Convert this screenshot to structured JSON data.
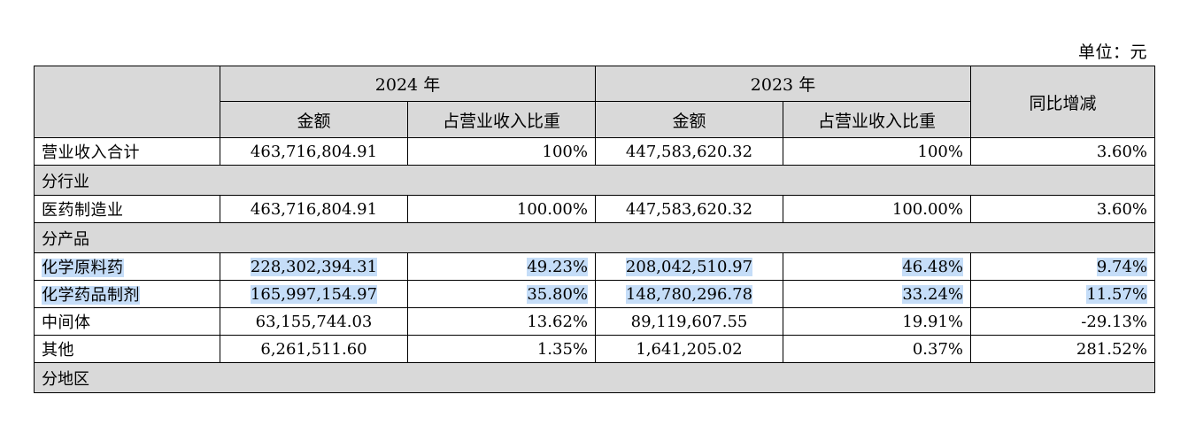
{
  "unit_label": "单位：元",
  "header": {
    "year_2024": "2024 年",
    "year_2023": "2023 年",
    "amount": "金额",
    "share": "占营业收入比重",
    "yoy": "同比增减"
  },
  "rows": [
    {
      "label": "营业收入合计",
      "a2024": "463,716,804.91",
      "s2024": "100%",
      "a2023": "447,583,620.32",
      "s2023": "100%",
      "yoy": "3.60%"
    },
    {
      "section": "分行业"
    },
    {
      "label": "医药制造业",
      "a2024": "463,716,804.91",
      "s2024": "100.00%",
      "a2023": "447,583,620.32",
      "s2023": "100.00%",
      "yoy": "3.60%"
    },
    {
      "section": "分产品"
    },
    {
      "label": "化学原料药",
      "a2024": "228,302,394.31",
      "s2024": "49.23%",
      "a2023": "208,042,510.97",
      "s2023": "46.48%",
      "yoy": "9.74%"
    },
    {
      "label": "化学药品制剂",
      "a2024": "165,997,154.97",
      "s2024": "35.80%",
      "a2023": "148,780,296.78",
      "s2023": "33.24%",
      "yoy": "11.57%"
    },
    {
      "label": "中间体",
      "a2024": "63,155,744.03",
      "s2024": "13.62%",
      "a2023": "89,119,607.55",
      "s2023": "19.91%",
      "yoy": "-29.13%"
    },
    {
      "label": "其他",
      "a2024": "6,261,511.60",
      "s2024": "1.35%",
      "a2023": "1,641,205.02",
      "s2023": "0.37%",
      "yoy": "281.52%"
    },
    {
      "section": "分地区"
    }
  ]
}
